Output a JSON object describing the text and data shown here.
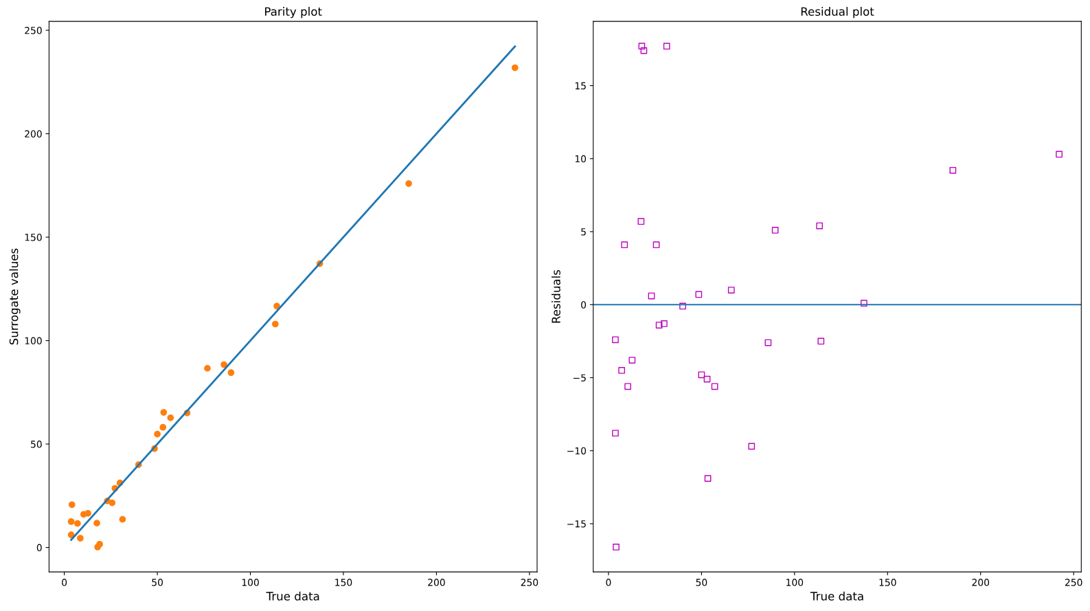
{
  "chart_data": [
    {
      "type": "scatter",
      "title": "Parity plot",
      "xlabel": "True data",
      "ylabel": "Surrogate values",
      "xlim": [
        -8.2,
        254.1
      ],
      "xticks": [
        0,
        50,
        100,
        150,
        200,
        250
      ],
      "ylim": [
        -11.8,
        254.3
      ],
      "yticks": [
        0,
        50,
        100,
        150,
        200,
        250
      ],
      "grid": false,
      "series": [
        {
          "type": "line",
          "color": "#1f77b4",
          "x": [
            3.7,
            242.2
          ],
          "values": [
            3.7,
            242.2
          ]
        },
        {
          "color": "#ff7f0e",
          "marker": "circle",
          "x": [
            17.9,
            19.0,
            31.3,
            242.2,
            185.1,
            17.5,
            8.6,
            25.7,
            89.6,
            113.4,
            23.1,
            48.5,
            66.0,
            39.9,
            137.3,
            27.2,
            29.9,
            3.7,
            85.8,
            114.2,
            12.7,
            7.1,
            10.4,
            50.0,
            53.0,
            57.1,
            3.7,
            76.9,
            53.4,
            4.1
          ],
          "values": [
            0.2,
            1.6,
            13.6,
            231.9,
            175.9,
            11.8,
            4.5,
            21.6,
            84.5,
            108.0,
            22.5,
            47.8,
            65.0,
            40.0,
            137.2,
            28.6,
            31.2,
            6.1,
            88.4,
            116.7,
            16.5,
            11.6,
            16.0,
            54.8,
            58.1,
            62.7,
            12.5,
            86.6,
            65.3,
            20.7
          ]
        }
      ]
    },
    {
      "type": "scatter",
      "title": "Residual plot",
      "xlabel": "True data",
      "ylabel": "Residuals",
      "xlim": [
        -8.2,
        254.1
      ],
      "xticks": [
        0,
        50,
        100,
        150,
        200,
        250
      ],
      "ylim": [
        -18.3,
        19.4
      ],
      "yticks": [
        {
          "value": -15,
          "label": "−15"
        },
        {
          "value": -10,
          "label": "−10"
        },
        {
          "value": -5,
          "label": "−5"
        },
        0,
        5,
        10,
        15
      ],
      "grid": false,
      "ref_lines": [
        {
          "axis": "y",
          "value": 0,
          "color": "#1f77b4",
          "line_style": "solid"
        }
      ],
      "series": [
        {
          "color": "#bf00bf",
          "marker": "square",
          "x": [
            17.9,
            19.0,
            31.3,
            242.2,
            185.1,
            17.5,
            8.6,
            25.7,
            89.6,
            113.4,
            23.1,
            48.5,
            66.0,
            39.9,
            137.3,
            27.2,
            29.9,
            3.7,
            85.8,
            114.2,
            12.7,
            7.1,
            10.4,
            50.0,
            53.0,
            57.1,
            3.7,
            76.9,
            53.4,
            4.1
          ],
          "values": [
            17.7,
            17.4,
            17.7,
            10.3,
            9.2,
            5.7,
            4.1,
            4.1,
            5.1,
            5.4,
            0.6,
            0.7,
            1.0,
            -0.1,
            0.1,
            -1.4,
            -1.3,
            -2.4,
            -2.6,
            -2.5,
            -3.8,
            -4.5,
            -5.6,
            -4.8,
            -5.1,
            -5.6,
            -8.8,
            -9.7,
            -11.9,
            -16.6
          ]
        }
      ]
    }
  ]
}
